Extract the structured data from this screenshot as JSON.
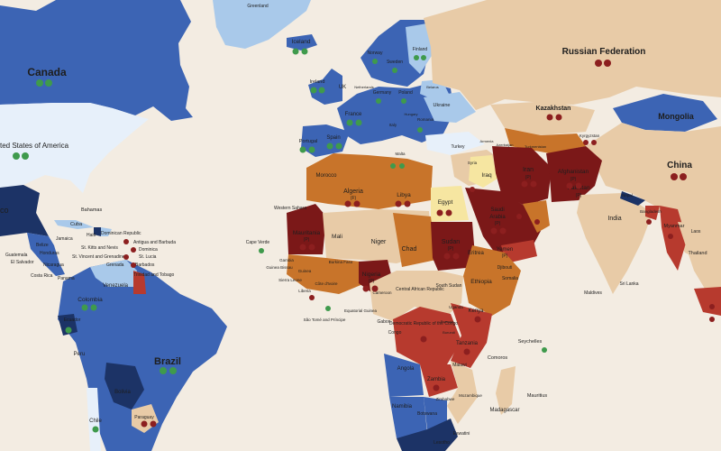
{
  "map": {
    "colors": {
      "ocean": "#f3ece2",
      "dark_blue": "#1c3366",
      "mid_blue": "#3c64b4",
      "light_blue": "#a9c9ea",
      "very_light_blue": "#e7f0fa",
      "beige": "#e8cba7",
      "light_orange": "#e2a065",
      "orange": "#c8742a",
      "red": "#b73a2e",
      "dark_red": "#7b1818",
      "yellow": "#f6e6a1",
      "green_badge": "#3f9a4c",
      "red_badge": "#8c1f1f"
    },
    "labels": {
      "greenland": "Greenland",
      "canada": "Canada",
      "usa": "ted States of America",
      "mexico": "co",
      "bahamas": "Bahamas",
      "cuba": "Cuba",
      "haiti": "Haiti",
      "jamaica": "Jamaica",
      "dominican_republic": "Dominican Republic",
      "st_kitts": "St. Kitts and Nevis",
      "antigua": "Antigua and Barbuda",
      "dominica": "Dominica",
      "st_vincent": "St. Vincent and Grenadines",
      "st_lucia": "St. Lucia",
      "grenada": "Grenada",
      "barbados": "Barbados",
      "trinidad": "Trinidad and Tobago",
      "belize": "Belize",
      "honduras": "Honduras",
      "guatemala": "Guatemala",
      "el_salvador": "El Salvador",
      "nicaragua": "Nicaragua",
      "costa_rica": "Costa Rica",
      "panama": "Panama",
      "venezuela": "Venezuela",
      "colombia": "Colombia",
      "ecuador": "Ecuador",
      "peru": "Peru",
      "brazil": "Brazil",
      "bolivia": "Bolivia",
      "paraguay": "Paraguay",
      "chile": "Chile",
      "iceland": "Iceland",
      "norway": "Norway",
      "sweden": "Sweden",
      "finland": "Finland",
      "ireland": "Ireland",
      "uk": "UK",
      "netherlands": "Netherlands",
      "germany": "Germany",
      "poland": "Poland",
      "belarus": "Belarus",
      "ukraine": "Ukraine",
      "france": "France",
      "spain": "Spain",
      "portugal": "Portugal",
      "italy": "Italy",
      "romania": "Romania",
      "hungary": "Hungary",
      "malta": "Malta",
      "greece": "Greece",
      "turkey": "Turkey",
      "russia": "Russian Federation",
      "kazakhstan": "Kazakhstan",
      "mongolia": "Mongolia",
      "china": "China",
      "kyrgyzstan": "Kyrgyzstan",
      "turkmenistan": "Turkmenistan",
      "armenia": "Armenia",
      "azerbaijan": "Azerbaijan",
      "iran": "Iran",
      "iraq": "Iraq",
      "syria": "Syria",
      "afghanistan": "Afghanistan",
      "pakistan": "Pakistan",
      "india": "India",
      "nepal": "Nepal",
      "bangladesh": "Bangladesh",
      "myanmar": "Myanmar",
      "laos": "Laos",
      "thailand": "Thailand",
      "sri_lanka": "Sri Lanka",
      "maldives": "Maldives",
      "saudi_arabia": "Saudi Arabia",
      "yemen": "Yemen",
      "morocco": "Morocco",
      "western_sahara": "Western Sahara",
      "algeria": "Algeria",
      "libya": "Libya",
      "egypt": "Egypt",
      "mauritania": "Mauritania",
      "mali": "Mali",
      "niger": "Niger",
      "chad": "Chad",
      "sudan": "Sudan",
      "eritrea": "Eritrea",
      "djibouti": "Djibouti",
      "ethiopia": "Ethiopia",
      "somalia": "Somalia",
      "south_sudan": "South Sudan",
      "cape_verde": "Cape Verde",
      "gambia": "Gambia",
      "guinea_bissau": "Guinea Bissau",
      "guinea": "Guinea",
      "sierra_leone": "Sierra Leone",
      "liberia": "Liberia",
      "cote_divoire": "Côte d'Ivoire",
      "burkina": "Burkina Faso",
      "nigeria": "Nigeria",
      "cameroon": "Cameroon",
      "car": "Central African Republic",
      "eq_guinea": "Equatorial Guinea",
      "gabon": "Gabon",
      "congo": "Congo",
      "drc": "Democratic Republic of the Congo",
      "sao_tome": "São Tomé and Príncipe",
      "uganda": "Uganda",
      "kenya": "Kenya",
      "rwanda": "Rwanda",
      "burundi": "Burundi",
      "tanzania": "Tanzania",
      "angola": "Angola",
      "zambia": "Zambia",
      "malawi": "Malawi",
      "mozambique": "Mozambique",
      "zimbabwe": "Zimbabwe",
      "namibia": "Namibia",
      "botswana": "Botswana",
      "eswatini": "Eswatini",
      "lesotho": "Lesotho",
      "madagascar": "Madagascar",
      "comoros": "Comoros",
      "seychelles": "Seychelles",
      "mauritius": "Mauritius",
      "tunisia": "Tunisia",
      "lebanon": "Lebanon",
      "jordan": "Jordan",
      "qatar": "Qatar",
      "uae": "UAE",
      "oman": "Oman",
      "bhutan": "Bhutan",
      "cyprus": "Cyprus",
      "israel": "Israel"
    },
    "rating_notes": {
      "mauritania": "(P)",
      "algeria": "(F)",
      "iran": "(P)",
      "afghanistan": "(P)",
      "pakistan": "(P)",
      "saudi_arabia": "(P)",
      "yemen": "(P)",
      "nigeria": "(P)",
      "sudan": "(P)"
    }
  }
}
